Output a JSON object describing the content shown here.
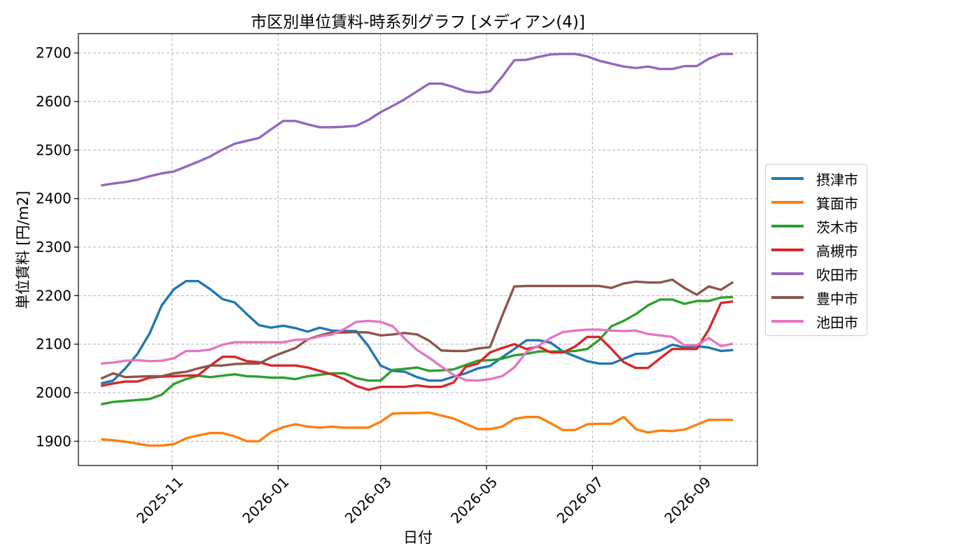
{
  "chart_data": {
    "type": "line",
    "title": "市区別単位賃料-時系列グラフ [メディアン(4)]",
    "xlabel": "日付",
    "ylabel": "単位賃料 [円/m2]",
    "x_type": "date",
    "xlim": [
      "2025-09-08",
      "2026-10-04"
    ],
    "ylim": [
      1850,
      2740
    ],
    "x_ticks": [
      "2025-11-01",
      "2026-01-01",
      "2026-03-01",
      "2026-05-01",
      "2026-07-01",
      "2026-09-01"
    ],
    "x_tick_labels": [
      "2025-11",
      "2026-01",
      "2026-03",
      "2026-05",
      "2026-07",
      "2026-09"
    ],
    "y_ticks": [
      1900,
      2000,
      2100,
      2200,
      2300,
      2400,
      2500,
      2600,
      2700
    ],
    "grid": true,
    "legend_position": "right-outside",
    "x": [
      "2025-09-21",
      "2025-09-28",
      "2025-10-05",
      "2025-10-12",
      "2025-10-19",
      "2025-10-26",
      "2025-11-02",
      "2025-11-09",
      "2025-11-16",
      "2025-11-23",
      "2025-11-30",
      "2025-12-07",
      "2025-12-14",
      "2025-12-21",
      "2025-12-28",
      "2026-01-04",
      "2026-01-11",
      "2026-01-18",
      "2026-01-25",
      "2026-02-01",
      "2026-02-08",
      "2026-02-15",
      "2026-02-22",
      "2026-03-01",
      "2026-03-08",
      "2026-03-15",
      "2026-03-22",
      "2026-03-29",
      "2026-04-05",
      "2026-04-12",
      "2026-04-19",
      "2026-04-26",
      "2026-05-03",
      "2026-05-10",
      "2026-05-17",
      "2026-05-24",
      "2026-05-31",
      "2026-06-07",
      "2026-06-14",
      "2026-06-21",
      "2026-06-28",
      "2026-07-05",
      "2026-07-12",
      "2026-07-19",
      "2026-07-26",
      "2026-08-02",
      "2026-08-09",
      "2026-08-16",
      "2026-08-23",
      "2026-08-30",
      "2026-09-06",
      "2026-09-13",
      "2026-09-20"
    ],
    "series": [
      {
        "name": "摂津市",
        "color": "#1f77b4",
        "values": [
          2019,
          2025,
          2050,
          2080,
          2122,
          2180,
          2213,
          2230,
          2230,
          2213,
          2193,
          2186,
          2162,
          2139,
          2134,
          2138,
          2133,
          2126,
          2134,
          2128,
          2127,
          2127,
          2096,
          2056,
          2045,
          2043,
          2032,
          2025,
          2025,
          2033,
          2040,
          2050,
          2055,
          2073,
          2090,
          2108,
          2108,
          2103,
          2085,
          2075,
          2065,
          2060,
          2060,
          2070,
          2080,
          2081,
          2087,
          2099,
          2093,
          2096,
          2093,
          2086,
          2088
        ]
      },
      {
        "name": "箕面市",
        "color": "#ff7f0e",
        "values": [
          1904,
          1902,
          1899,
          1895,
          1891,
          1891,
          1894,
          1906,
          1912,
          1917,
          1917,
          1910,
          1900,
          1900,
          1919,
          1929,
          1935,
          1930,
          1928,
          1930,
          1928,
          1928,
          1928,
          1940,
          1957,
          1958,
          1958,
          1959,
          1953,
          1947,
          1936,
          1925,
          1925,
          1930,
          1946,
          1950,
          1950,
          1937,
          1923,
          1923,
          1935,
          1936,
          1936,
          1950,
          1925,
          1918,
          1922,
          1921,
          1924,
          1934,
          1944,
          1944,
          1944
        ]
      },
      {
        "name": "茨木市",
        "color": "#2ca02c",
        "values": [
          1976,
          1981,
          1983,
          1985,
          1987,
          1996,
          2018,
          2028,
          2035,
          2032,
          2035,
          2038,
          2034,
          2033,
          2031,
          2031,
          2028,
          2034,
          2037,
          2040,
          2040,
          2030,
          2025,
          2025,
          2047,
          2049,
          2052,
          2045,
          2046,
          2048,
          2057,
          2066,
          2067,
          2070,
          2077,
          2080,
          2085,
          2085,
          2085,
          2086,
          2090,
          2109,
          2137,
          2148,
          2162,
          2180,
          2192,
          2192,
          2183,
          2189,
          2189,
          2196,
          2197
        ]
      },
      {
        "name": "高槻市",
        "color": "#d62728",
        "values": [
          2014,
          2019,
          2023,
          2023,
          2031,
          2033,
          2034,
          2035,
          2036,
          2056,
          2074,
          2074,
          2065,
          2063,
          2056,
          2056,
          2056,
          2052,
          2045,
          2038,
          2028,
          2014,
          2006,
          2012,
          2012,
          2012,
          2015,
          2012,
          2012,
          2021,
          2053,
          2060,
          2083,
          2092,
          2100,
          2090,
          2095,
          2083,
          2083,
          2095,
          2115,
          2115,
          2090,
          2063,
          2051,
          2051,
          2071,
          2090,
          2090,
          2090,
          2130,
          2185,
          2188
        ]
      },
      {
        "name": "吹田市",
        "color": "#9467bd",
        "values": [
          2427,
          2431,
          2434,
          2439,
          2446,
          2452,
          2456,
          2466,
          2476,
          2487,
          2501,
          2513,
          2519,
          2525,
          2543,
          2560,
          2560,
          2553,
          2547,
          2547,
          2548,
          2550,
          2562,
          2578,
          2591,
          2605,
          2621,
          2637,
          2637,
          2630,
          2621,
          2618,
          2621,
          2651,
          2685,
          2686,
          2692,
          2697,
          2698,
          2698,
          2693,
          2684,
          2678,
          2672,
          2669,
          2672,
          2667,
          2667,
          2673,
          2673,
          2688,
          2698,
          2698
        ]
      },
      {
        "name": "豊中市",
        "color": "#8c564b",
        "values": [
          2029,
          2040,
          2032,
          2033,
          2034,
          2034,
          2040,
          2043,
          2050,
          2056,
          2056,
          2059,
          2060,
          2060,
          2073,
          2083,
          2092,
          2110,
          2118,
          2124,
          2124,
          2125,
          2124,
          2118,
          2120,
          2123,
          2120,
          2107,
          2087,
          2086,
          2086,
          2091,
          2094,
          2158,
          2219,
          2220,
          2220,
          2220,
          2220,
          2220,
          2220,
          2220,
          2216,
          2225,
          2229,
          2227,
          2227,
          2233,
          2216,
          2202,
          2219,
          2212,
          2228
        ]
      },
      {
        "name": "池田市",
        "color": "#e377c2",
        "values": [
          2060,
          2062,
          2066,
          2067,
          2065,
          2066,
          2071,
          2086,
          2086,
          2089,
          2099,
          2104,
          2104,
          2104,
          2104,
          2104,
          2109,
          2110,
          2116,
          2120,
          2131,
          2146,
          2148,
          2146,
          2137,
          2111,
          2088,
          2072,
          2054,
          2037,
          2026,
          2025,
          2028,
          2034,
          2052,
          2084,
          2097,
          2113,
          2125,
          2128,
          2130,
          2130,
          2128,
          2127,
          2128,
          2121,
          2118,
          2115,
          2098,
          2098,
          2113,
          2096,
          2101
        ]
      }
    ]
  }
}
